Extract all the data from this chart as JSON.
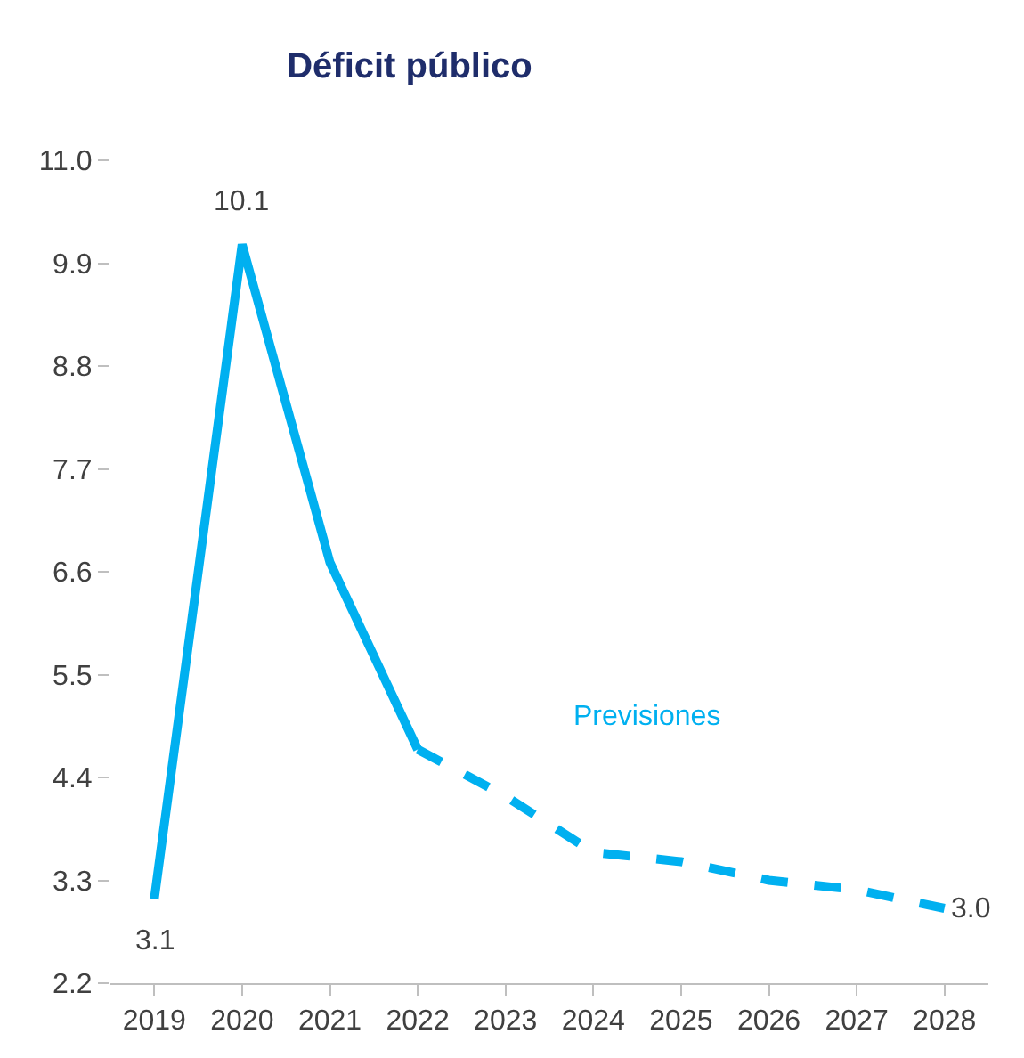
{
  "chart_data": {
    "type": "line",
    "title": "Déficit público",
    "categories": [
      "2019",
      "2020",
      "2021",
      "2022",
      "2023",
      "2024",
      "2025",
      "2026",
      "2027",
      "2028"
    ],
    "series": [
      {
        "color": "#00b0f0",
        "line_style": "solid",
        "values": [
          3.1,
          10.1,
          6.7,
          4.7,
          null,
          null,
          null,
          null,
          null,
          null
        ],
        "value_labels": [
          "3.1",
          "10.1",
          null,
          null,
          null,
          null,
          null,
          null,
          null,
          null
        ]
      },
      {
        "color": "#00b0f0",
        "line_style": "dashed",
        "values": [
          null,
          null,
          null,
          4.7,
          4.2,
          3.6,
          3.5,
          3.3,
          3.2,
          3.0
        ],
        "value_labels": [
          null,
          null,
          null,
          null,
          null,
          null,
          null,
          null,
          null,
          "3.0"
        ]
      }
    ],
    "annotations": [
      "Previsiones"
    ],
    "ylim": [
      2.2,
      11.0
    ],
    "yticks": [
      {
        "value": 2.2,
        "label": "2.2"
      },
      {
        "value": 3.3,
        "label": "3.3"
      },
      {
        "value": 4.4,
        "label": "4.4"
      },
      {
        "value": 5.5,
        "label": "5.5"
      },
      {
        "value": 6.6,
        "label": "6.6"
      },
      {
        "value": 7.7,
        "label": "7.7"
      },
      {
        "value": 8.8,
        "label": "8.8"
      },
      {
        "value": 9.9,
        "label": "9.9"
      },
      {
        "value": 11.0,
        "label": "11.0"
      }
    ],
    "marker": "none"
  }
}
